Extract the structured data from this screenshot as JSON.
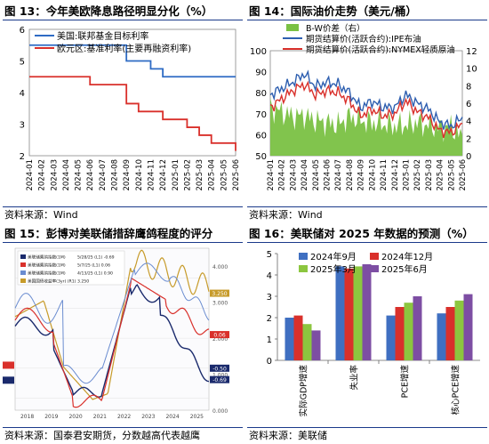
{
  "panels": [
    {
      "title": "图 13：今年美欧降息路径明显分化（%）",
      "source": "资料来源：Wind"
    },
    {
      "title": "图 14：国际油价走势（美元/桶）",
      "source": "资料来源：Wind"
    },
    {
      "title": "图 15：彭博对美联储措辞鹰鸽程度的评分",
      "source": "资料来源：国泰君安期货，分数越高代表越鹰"
    },
    {
      "title": "图 16：美联储对 2025 年数据的预测（%）",
      "source": "资料来源：美联储"
    }
  ],
  "chart_data": [
    {
      "type": "line",
      "title": "图 13：今年美欧降息路径明显分化（%）",
      "x": [
        "2024-01",
        "2024-02",
        "2024-03",
        "2024-04",
        "2024-05",
        "2024-06",
        "2024-07",
        "2024-08",
        "2024-09",
        "2024-10",
        "2024-11",
        "2024-12",
        "2025-01",
        "2025-02",
        "2025-03",
        "2025-04",
        "2025-05",
        "2025-06"
      ],
      "ylim": [
        2,
        6
      ],
      "yticks": [
        2,
        3,
        4,
        5,
        6
      ],
      "series": [
        {
          "name": "美国:联邦基金目标利率",
          "color": "#2e6bc4",
          "values": [
            5.5,
            5.5,
            5.5,
            5.5,
            5.5,
            5.5,
            5.5,
            5.5,
            5.0,
            5.0,
            4.75,
            4.5,
            4.5,
            4.5,
            4.5,
            4.5,
            4.5,
            4.5
          ]
        },
        {
          "name": "欧元区:基准利率(主要再融资利率)",
          "color": "#d9302b",
          "values": [
            4.5,
            4.5,
            4.5,
            4.5,
            4.5,
            4.25,
            4.25,
            4.25,
            3.65,
            3.4,
            3.4,
            3.15,
            3.15,
            2.9,
            2.65,
            2.4,
            2.4,
            2.15
          ]
        }
      ],
      "legend": "top-left"
    },
    {
      "type": "line",
      "title": "图 14：国际油价走势（美元/桶）",
      "x": [
        "2024-01",
        "2024-02",
        "2024-03",
        "2024-04",
        "2024-05",
        "2024-06",
        "2024-07",
        "2024-08",
        "2024-09",
        "2024-10",
        "2024-11",
        "2024-12",
        "2025-01",
        "2025-02",
        "2025-03",
        "2025-04",
        "2025-05",
        "2025-06"
      ],
      "ylim": [
        50,
        100
      ],
      "yticks": [
        50,
        60,
        70,
        80,
        90,
        100
      ],
      "y2lim": [
        0,
        12
      ],
      "y2ticks": [
        0,
        2,
        4,
        6,
        8,
        10,
        12
      ],
      "series": [
        {
          "name": "B-W价差（右）",
          "type": "area",
          "color": "#7ac143",
          "axis": "right",
          "values": [
            5.5,
            5.0,
            4.5,
            4.6,
            4.0,
            3.8,
            3.5,
            4.5,
            4.0,
            3.8,
            3.6,
            3.4,
            3.5,
            3.8,
            3.4,
            3.2,
            3.3,
            2.0
          ]
        },
        {
          "name": "期货结算价(活跃合约):IPE布油",
          "color": "#2e5fb0",
          "axis": "left",
          "values": [
            79,
            82,
            85,
            89,
            83,
            85,
            84,
            80,
            73,
            76,
            73,
            73,
            79,
            75,
            72,
            66,
            64,
            68
          ]
        },
        {
          "name": "期货结算价(活跃合约):NYMEX轻质原油",
          "color": "#d9302b",
          "axis": "left",
          "values": [
            73,
            77,
            81,
            84,
            79,
            81,
            80,
            76,
            69,
            72,
            69,
            70,
            76,
            71,
            68,
            62,
            61,
            65
          ]
        }
      ],
      "legend": "top-left"
    },
    {
      "type": "line",
      "title": "图 15：彭博对美联储措辞鹰鸽程度的评分",
      "x": [
        "2018",
        "2019",
        "2020",
        "2021",
        "2022",
        "2023",
        "2024",
        "2025"
      ],
      "ylim": [
        -1.2,
        1.5
      ],
      "y2lim": [
        0,
        4.5
      ],
      "y2ticks": [
        "0.000",
        "1.000",
        "2.000",
        "3.000",
        "4.000"
      ],
      "end_labels": [
        "3.250",
        "0.06",
        "-0.50",
        "-0.69"
      ],
      "legend_entries": [
        {
          "text": "美联储鹰鸽指数(1M)",
          "value": "5/28/25 (L1) -0.69",
          "color": "#1a2a6c"
        },
        {
          "text": "美联储鹰鸽指数(1M)",
          "value": "5/7/25 (L1) 0.06",
          "color": "#d9302b"
        },
        {
          "text": "美联储鹰鸽指数(1M)",
          "value": "4/13/25 (L1) 0.90",
          "color": "#6a8cd0"
        },
        {
          "text": "美国国债收益率(3yr) (R1)",
          "value": "3.250",
          "color": "#c79b2a"
        }
      ],
      "legend": "top-left"
    },
    {
      "type": "bar",
      "title": "图 16：美联储对 2025 年数据的预测（%）",
      "categories": [
        "实际GDP增速",
        "失业率",
        "PCE增速",
        "核心PCE增速"
      ],
      "ylim": [
        0,
        5
      ],
      "yticks": [
        0,
        1,
        2,
        3,
        4,
        5
      ],
      "series": [
        {
          "name": "2024年9月",
          "color": "#3f6fc1",
          "values": [
            2.0,
            4.4,
            2.1,
            2.2
          ]
        },
        {
          "name": "2024年12月",
          "color": "#d9302b",
          "values": [
            2.1,
            4.3,
            2.5,
            2.5
          ]
        },
        {
          "name": "2025年3月",
          "color": "#8cc63f",
          "values": [
            1.7,
            4.4,
            2.7,
            2.8
          ]
        },
        {
          "name": "2025年6月",
          "color": "#7d4ea3",
          "values": [
            1.4,
            4.5,
            3.0,
            3.1
          ]
        }
      ],
      "legend": "top-right"
    }
  ]
}
